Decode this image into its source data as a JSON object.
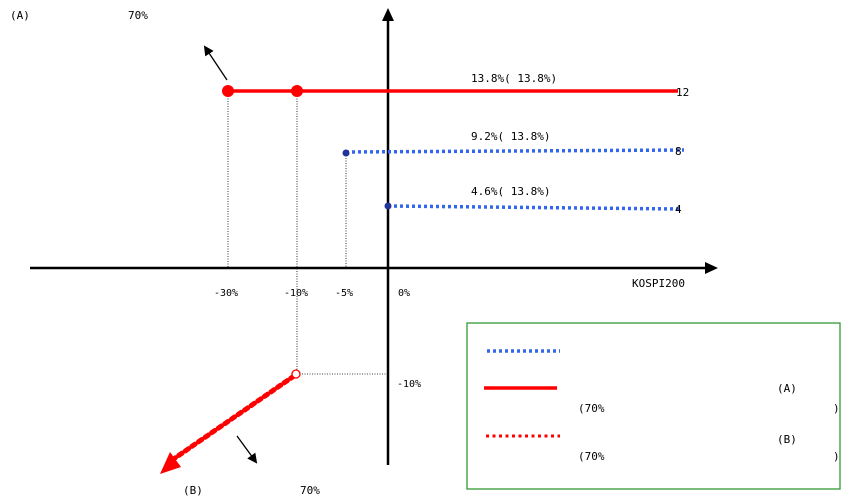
{
  "labels": {
    "top_left_a": "(A)",
    "top_left_pct": "70%",
    "bottom_b": "(B)",
    "bottom_pct": "70%",
    "x_axis_name": "KOSPI200",
    "x_ticks": [
      "-30%",
      "-10%",
      "-5%",
      "0%"
    ],
    "y_neg_tick": "-10%"
  },
  "lines": [
    {
      "label": "13.8%(   13.8%)",
      "end_value": "12",
      "style": "solid",
      "color": "#ff0000"
    },
    {
      "label": "9.2%(   13.8%)",
      "end_value": "8",
      "style": "dotted",
      "color": "#3366ee"
    },
    {
      "label": "4.6%(   13.8%)",
      "end_value": "4",
      "style": "dotted",
      "color": "#3366ee"
    }
  ],
  "legend": {
    "border_color": "#339933",
    "rows": [
      {
        "key": "blue-dotted-line",
        "a_label": "",
        "text": "",
        "close": ""
      },
      {
        "key": "red-solid-line",
        "a_label": "(A)",
        "text": "(70%",
        "close": ")"
      },
      {
        "key": "red-dotted-line",
        "a_label": "(B)",
        "text": "(70%",
        "close": ")"
      }
    ]
  },
  "colors": {
    "red": "#ff0000",
    "blue": "#3366ee",
    "axis": "#000000"
  }
}
